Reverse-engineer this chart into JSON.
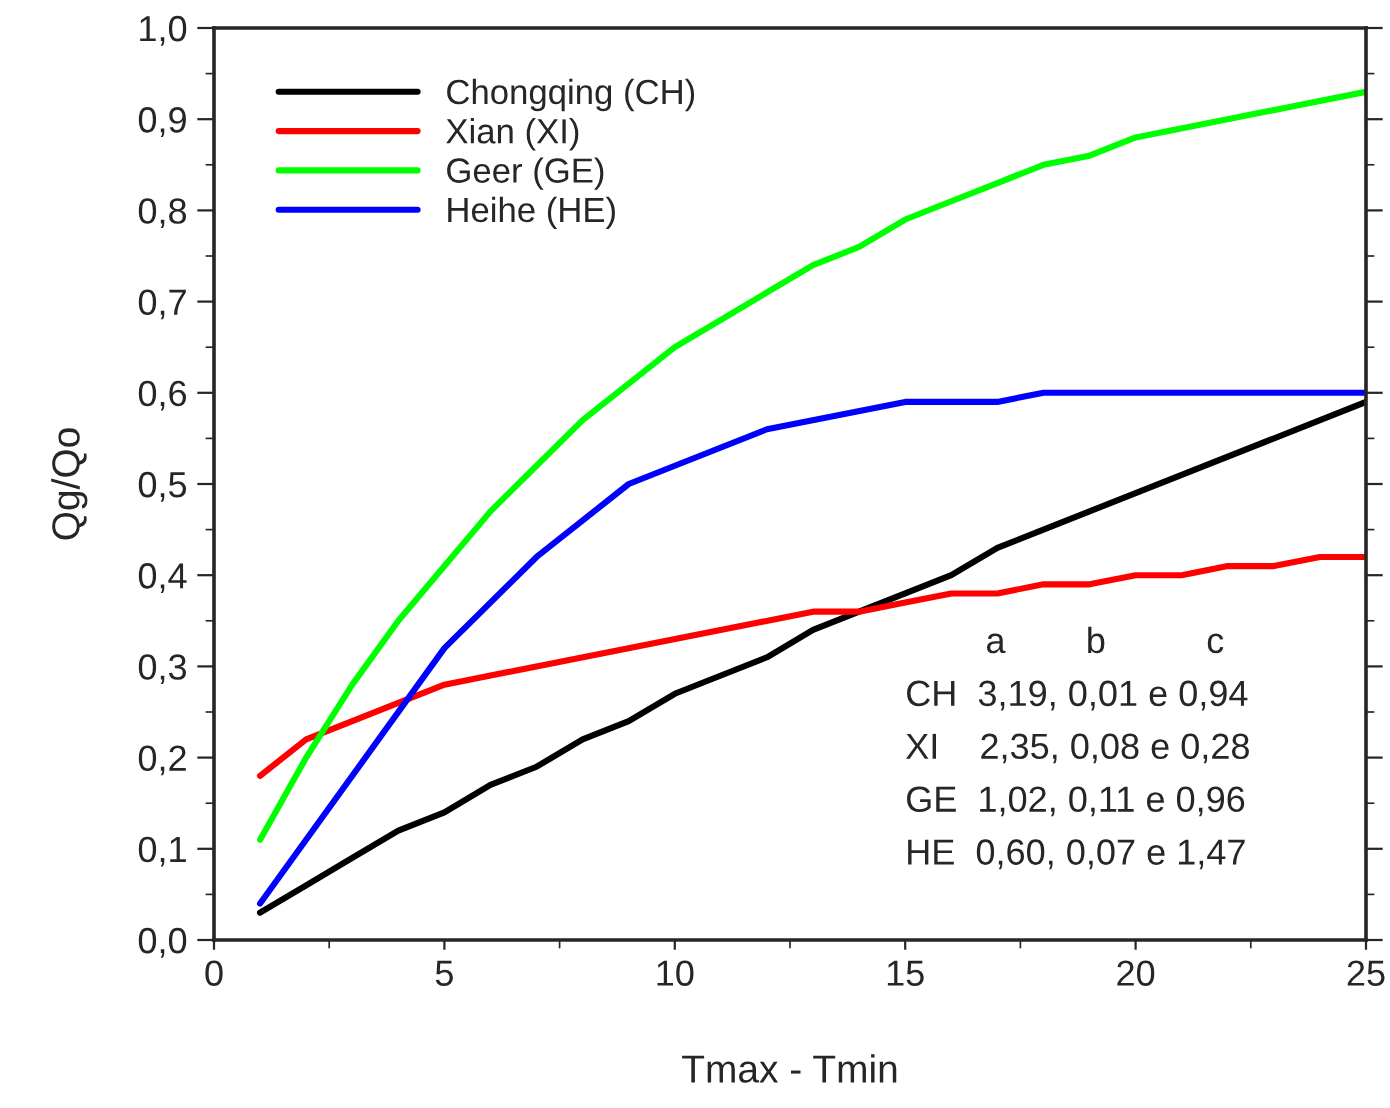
{
  "chart_data": {
    "type": "line",
    "xlabel": "Tmax - Tmin",
    "ylabel": "Qg/Qo",
    "xlim": [
      0,
      25
    ],
    "xticks": [
      0,
      5,
      10,
      15,
      20,
      25
    ],
    "ylim": [
      0,
      1.0
    ],
    "yticks": [
      {
        "value": 0,
        "label": "0,0"
      },
      {
        "value": 0.1,
        "label": "0,1"
      },
      {
        "value": 0.2,
        "label": "0,2"
      },
      {
        "value": 0.3,
        "label": "0,3"
      },
      {
        "value": 0.4,
        "label": "0,4"
      },
      {
        "value": 0.5,
        "label": "0,5"
      },
      {
        "value": 0.6,
        "label": "0,6"
      },
      {
        "value": 0.7,
        "label": "0,7"
      },
      {
        "value": 0.8,
        "label": "0,8"
      },
      {
        "value": 0.9,
        "label": "0,9"
      },
      {
        "value": 1.0,
        "label": "1,0"
      }
    ],
    "grid": false,
    "legend": "top left",
    "marker": "none",
    "line_style": "solid",
    "series": [
      {
        "name": "Chongqing (CH)",
        "color": "#000000",
        "x": [
          1,
          2,
          3,
          4,
          5,
          6,
          7,
          8,
          9,
          10,
          11,
          12,
          13,
          14,
          15,
          16,
          17,
          18,
          25
        ],
        "values": [
          0.03,
          0.06,
          0.09,
          0.12,
          0.14,
          0.17,
          0.19,
          0.22,
          0.24,
          0.27,
          0.29,
          0.31,
          0.34,
          0.36,
          0.38,
          0.4,
          0.43,
          0.45,
          0.59
        ]
      },
      {
        "name": "Xian (XI)",
        "color": "#ff0000",
        "x": [
          1,
          2,
          5,
          13,
          14,
          15,
          16,
          17,
          18,
          19,
          20,
          21,
          22,
          23,
          24,
          25
        ],
        "values": [
          0.18,
          0.22,
          0.28,
          0.36,
          0.36,
          0.37,
          0.38,
          0.38,
          0.39,
          0.39,
          0.4,
          0.4,
          0.41,
          0.41,
          0.42,
          0.42
        ]
      },
      {
        "name": "Geer (GE)",
        "color": "#00ff00",
        "x": [
          1,
          2,
          3,
          4,
          5,
          6,
          7,
          8,
          9,
          10,
          11,
          12,
          13,
          14,
          15,
          16,
          17,
          18,
          19,
          20,
          25
        ],
        "values": [
          0.11,
          0.2,
          0.28,
          0.35,
          0.41,
          0.47,
          0.52,
          0.57,
          0.61,
          0.65,
          0.68,
          0.71,
          0.74,
          0.76,
          0.79,
          0.81,
          0.83,
          0.85,
          0.86,
          0.88,
          0.93
        ]
      },
      {
        "name": "Heihe (HE)",
        "color": "#0000ff",
        "x": [
          1,
          5,
          7,
          9,
          10,
          12,
          15,
          17,
          18,
          25
        ],
        "values": [
          0.04,
          0.32,
          0.42,
          0.5,
          0.52,
          0.56,
          0.59,
          0.59,
          0.6,
          0.6
        ]
      }
    ],
    "annotations": [
      "        a        b          c",
      "CH  3,19, 0,01 e 0,94",
      "XI    2,35, 0,08 e 0,28",
      "GE  1,02, 0,11 e 0,96",
      "HE  0,60, 0,07 e 1,47"
    ]
  }
}
